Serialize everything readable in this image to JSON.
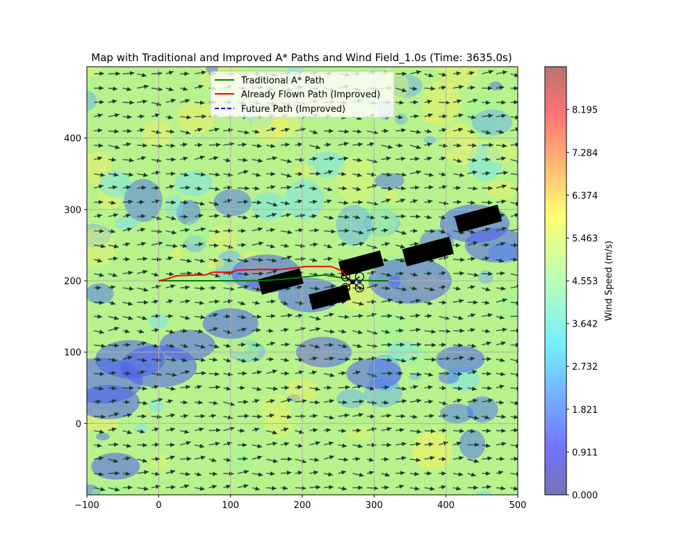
{
  "chart_data": {
    "type": "line",
    "title": "Map with Traditional and Improved A* Paths and Wind Field_1.0s (Time: 3635.0s)",
    "xlabel": "",
    "ylabel": "",
    "xlim": [
      -100,
      500
    ],
    "ylim": [
      -100,
      500
    ],
    "x_ticks": [
      -100,
      0,
      100,
      200,
      300,
      400,
      500
    ],
    "y_ticks": [
      0,
      100,
      200,
      300,
      400
    ],
    "x_tick_labels": [
      "−100",
      "0",
      "100",
      "200",
      "300",
      "400",
      "500"
    ],
    "y_tick_labels": [
      "0",
      "100",
      "200",
      "300",
      "400"
    ],
    "grid": true,
    "legend_position": "top-center",
    "series": [
      {
        "name": "Traditional A* Path",
        "style": "solid",
        "color": "#008000",
        "x": [
          0,
          70,
          140,
          170,
          200,
          230,
          250,
          270,
          300,
          320
        ],
        "y": [
          200,
          200,
          200,
          202,
          205,
          208,
          205,
          201,
          200,
          200
        ]
      },
      {
        "name": "Already Flown Path (Improved)",
        "style": "solid",
        "color": "#ff0000",
        "x": [
          0,
          10,
          25,
          50,
          65,
          75,
          100,
          110,
          140,
          170,
          190,
          205,
          240,
          255,
          262,
          268
        ],
        "y": [
          200,
          202,
          207,
          208,
          208,
          212,
          212,
          215,
          216,
          216,
          218,
          220,
          220,
          214,
          205,
          198
        ]
      },
      {
        "name": "Future Path (Improved)",
        "style": "dashed",
        "color": "#0000ff",
        "x": [
          268,
          275,
          285
        ],
        "y": [
          198,
          198,
          198
        ]
      }
    ],
    "obstacles": [
      {
        "cx": 170,
        "cy": 199,
        "w": 60,
        "h": 22,
        "angle": 15
      },
      {
        "cx": 238,
        "cy": 177,
        "w": 55,
        "h": 22,
        "angle": 15
      },
      {
        "cx": 282,
        "cy": 224,
        "w": 60,
        "h": 22,
        "angle": 15
      },
      {
        "cx": 375,
        "cy": 241,
        "w": 68,
        "h": 25,
        "angle": 15
      },
      {
        "cx": 445,
        "cy": 287,
        "w": 62,
        "h": 24,
        "angle": 15
      }
    ],
    "drone": {
      "x": 270,
      "y": 198
    },
    "colorbar": {
      "label": "Wind Speed (m/s)",
      "min": 0.0,
      "max": 9.106,
      "ticks": [
        0.0,
        0.911,
        1.821,
        2.732,
        3.642,
        4.553,
        5.463,
        6.374,
        7.284,
        8.195
      ],
      "tick_labels": [
        "0.000",
        "0.911",
        "1.821",
        "2.732",
        "3.642",
        "4.553",
        "5.463",
        "6.374",
        "7.284",
        "8.195"
      ],
      "colormap": "jet"
    }
  }
}
